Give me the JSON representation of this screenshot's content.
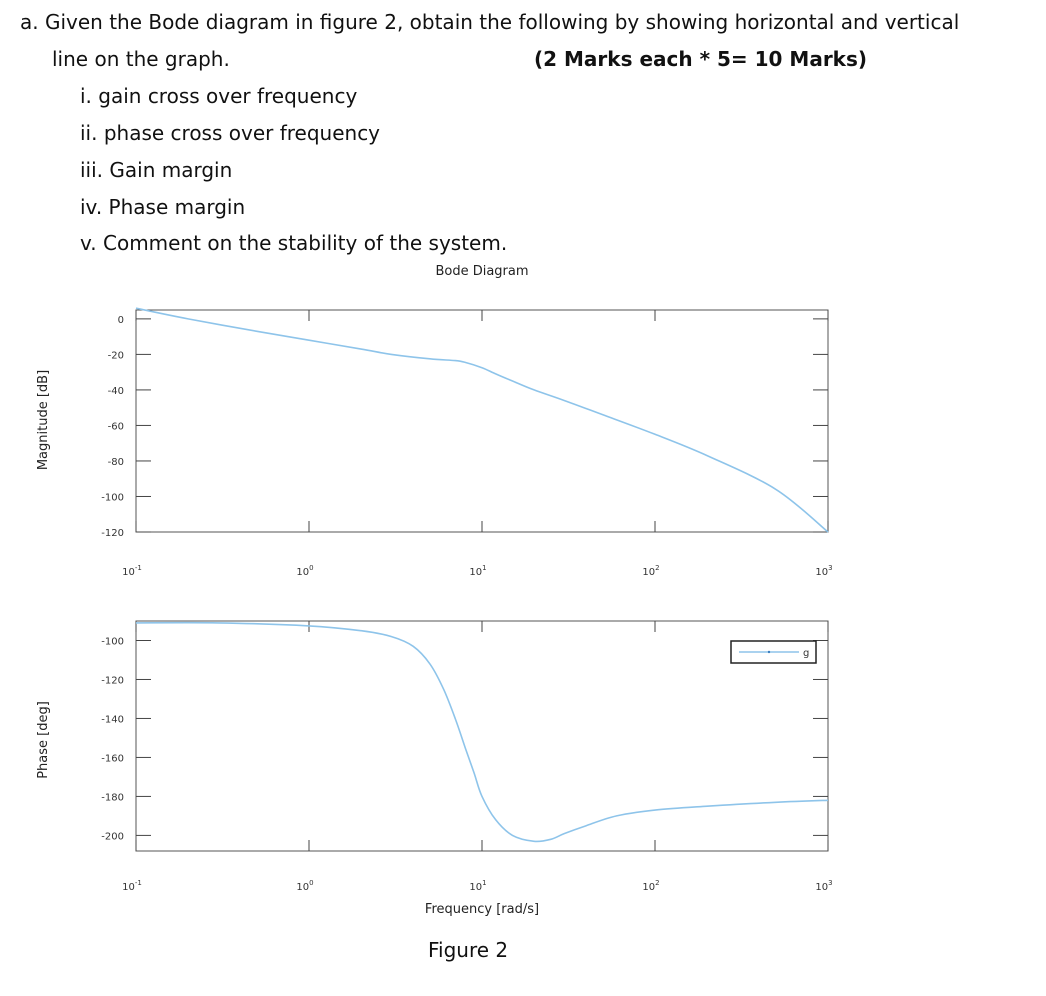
{
  "question": {
    "line1": "a. Given the Bode diagram in figure 2, obtain the following by showing horizontal and vertical",
    "line2": "line on the graph.",
    "marks": "(2 Marks each * 5= 10 Marks)",
    "items": [
      "i. gain cross over frequency",
      "ii. phase cross over frequency",
      "iii. Gain margin",
      "iv. Phase margin",
      "v. Comment on the stability of the system."
    ]
  },
  "figure_caption": "Figure 2",
  "chart_data": [
    {
      "type": "line",
      "title": "Bode Diagram",
      "ylabel": "Magnitude [dB]",
      "xlabel": "",
      "xscale": "log",
      "xlim": [
        0.1,
        1000
      ],
      "ylim": [
        -120,
        5
      ],
      "x_ticks": [
        0.1,
        1,
        10,
        100,
        1000
      ],
      "x_tick_labels": [
        {
          "base": "10",
          "exp": "-1"
        },
        {
          "base": "10",
          "exp": "0"
        },
        {
          "base": "10",
          "exp": "1"
        },
        {
          "base": "10",
          "exp": "2"
        },
        {
          "base": "10",
          "exp": "3"
        }
      ],
      "y_ticks": [
        0,
        -20,
        -40,
        -60,
        -80,
        -100,
        -120
      ],
      "grid": false,
      "line_color": "#8ec4ea",
      "series": [
        {
          "x": [
            0.1,
            0.2,
            0.5,
            1,
            2,
            3,
            5,
            7,
            8,
            10,
            12,
            15,
            20,
            30,
            50,
            100,
            200,
            500,
            1000
          ],
          "values": [
            6,
            0,
            -7,
            -12,
            -17,
            -20,
            -22.5,
            -23.5,
            -24.5,
            -27.5,
            -31,
            -35,
            -40,
            -46,
            -54,
            -65,
            -77,
            -96,
            -120
          ]
        }
      ]
    },
    {
      "type": "line",
      "title": "",
      "ylabel": "Phase [deg]",
      "xlabel": "Frequency [rad/s]",
      "xscale": "log",
      "xlim": [
        0.1,
        1000
      ],
      "ylim": [
        -208,
        -90
      ],
      "x_ticks": [
        0.1,
        1,
        10,
        100,
        1000
      ],
      "x_tick_labels": [
        {
          "base": "10",
          "exp": "-1"
        },
        {
          "base": "10",
          "exp": "0"
        },
        {
          "base": "10",
          "exp": "1"
        },
        {
          "base": "10",
          "exp": "2"
        },
        {
          "base": "10",
          "exp": "3"
        }
      ],
      "y_ticks": [
        -100,
        -120,
        -140,
        -160,
        -180,
        -200
      ],
      "grid": false,
      "legend_position": "top-right",
      "legend_label": "g",
      "line_color": "#8ec4ea",
      "series": [
        {
          "name": "g",
          "x": [
            0.1,
            0.3,
            1,
            2,
            3,
            4,
            5,
            6,
            7,
            8,
            9,
            10,
            12,
            15,
            20,
            25,
            30,
            40,
            60,
            100,
            200,
            500,
            1000
          ],
          "values": [
            -91,
            -91,
            -92.5,
            -95,
            -98,
            -103,
            -112,
            -125,
            -140,
            -155,
            -168,
            -180,
            -192,
            -200,
            -203,
            -202,
            -199,
            -195,
            -190,
            -187,
            -185,
            -183,
            -182
          ]
        }
      ]
    }
  ]
}
